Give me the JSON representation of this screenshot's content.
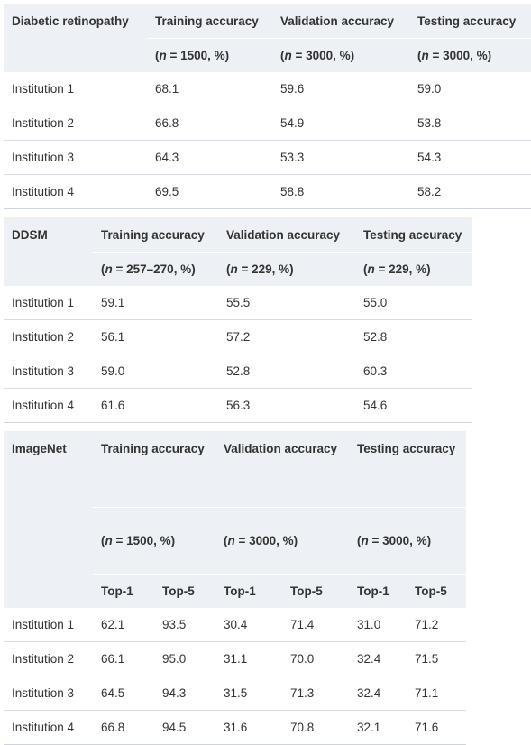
{
  "tables": [
    {
      "dataset": "Diabetic retinopathy",
      "headers": [
        "Training accuracy",
        "Validation accuracy",
        "Testing accuracy"
      ],
      "subheaders": [
        "(n = 1500, %)",
        "(n = 3000, %)",
        "(n = 3000, %)"
      ],
      "rows": [
        {
          "label": "Institution 1",
          "values": [
            "68.1",
            "59.6",
            "59.0"
          ]
        },
        {
          "label": "Institution 2",
          "values": [
            "66.8",
            "54.9",
            "53.8"
          ]
        },
        {
          "label": "Institution 3",
          "values": [
            "64.3",
            "53.3",
            "54.3"
          ]
        },
        {
          "label": "Institution 4",
          "values": [
            "69.5",
            "58.8",
            "58.2"
          ]
        }
      ]
    },
    {
      "dataset": "DDSM",
      "headers": [
        "Training accuracy",
        "Validation accuracy",
        "Testing accuracy"
      ],
      "subheaders": [
        "(n = 257–270, %)",
        "(n = 229, %)",
        "(n = 229, %)"
      ],
      "rows": [
        {
          "label": "Institution 1",
          "values": [
            "59.1",
            "55.5",
            "55.0"
          ]
        },
        {
          "label": "Institution 2",
          "values": [
            "56.1",
            "57.2",
            "52.8"
          ]
        },
        {
          "label": "Institution 3",
          "values": [
            "59.0",
            "52.8",
            "60.3"
          ]
        },
        {
          "label": "Institution 4",
          "values": [
            "61.6",
            "56.3",
            "54.6"
          ]
        }
      ]
    },
    {
      "dataset": "ImageNet",
      "headers": [
        "Training accuracy",
        "Validation accuracy",
        "Testing accuracy"
      ],
      "subheaders": [
        "(n = 1500, %)",
        "(n = 3000, %)",
        "(n = 3000, %)"
      ],
      "topk": [
        "Top-1",
        "Top-5",
        "Top-1",
        "Top-5",
        "Top-1",
        "Top-5"
      ],
      "rows": [
        {
          "label": "Institution 1",
          "values": [
            "62.1",
            "93.5",
            "30.4",
            "71.4",
            "31.0",
            "71.2"
          ]
        },
        {
          "label": "Institution 2",
          "values": [
            "66.1",
            "95.0",
            "31.1",
            "70.0",
            "32.4",
            "71.5"
          ]
        },
        {
          "label": "Institution 3",
          "values": [
            "64.5",
            "94.3",
            "31.5",
            "71.3",
            "32.4",
            "71.1"
          ]
        },
        {
          "label": "Institution 4",
          "values": [
            "66.8",
            "94.5",
            "31.6",
            "70.8",
            "32.1",
            "71.6"
          ]
        }
      ]
    }
  ]
}
